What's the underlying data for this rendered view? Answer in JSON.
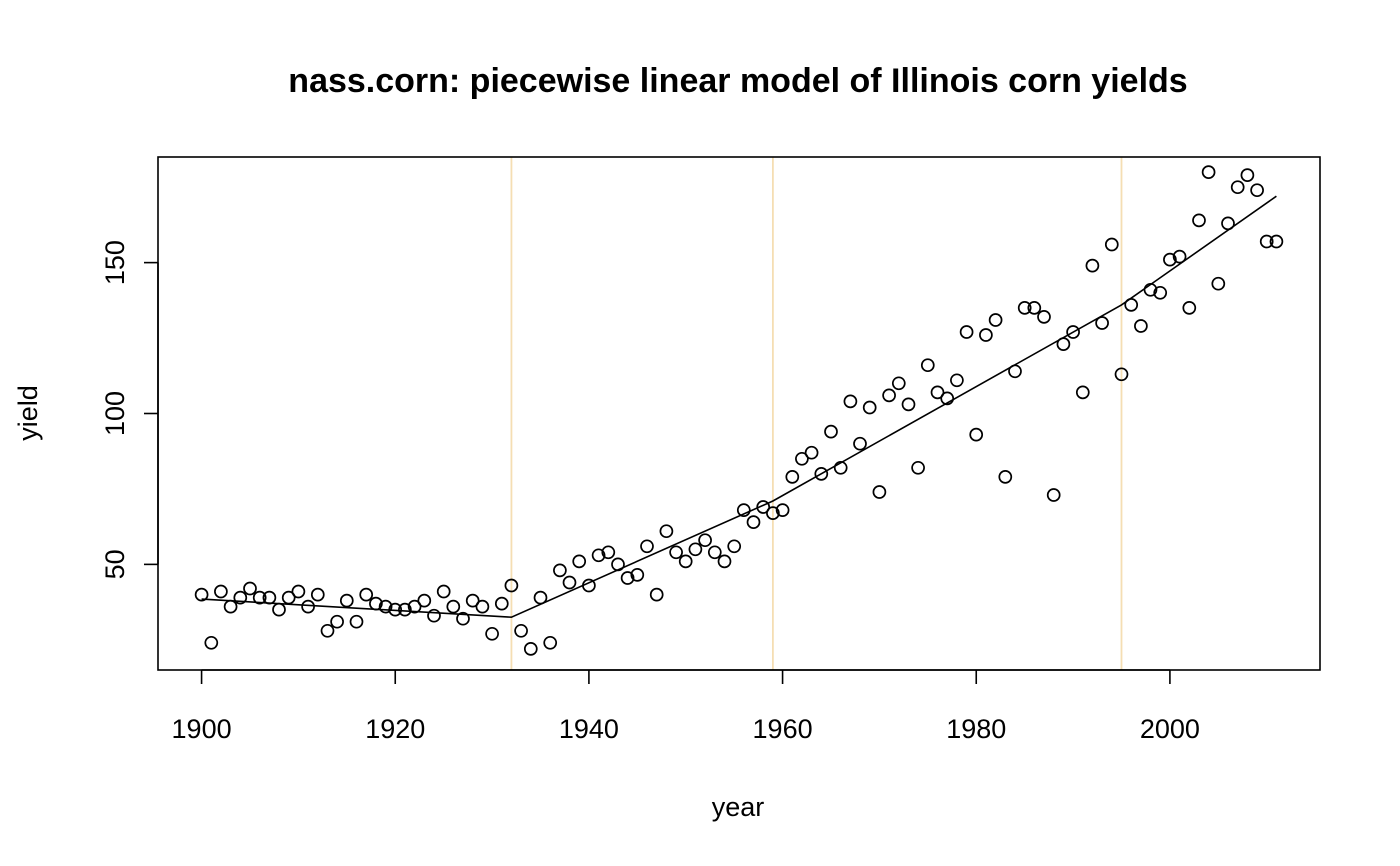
{
  "chart_data": {
    "type": "scatter",
    "title": "nass.corn: piecewise linear model of Illinois corn yields",
    "xlabel": "year",
    "ylabel": "yield",
    "xlim": [
      1895.5,
      2015.5
    ],
    "ylim": [
      15,
      185
    ],
    "xticks": [
      1900,
      1920,
      1940,
      1960,
      1980,
      2000
    ],
    "yticks": [
      50,
      100,
      150
    ],
    "grid": false,
    "breakpoints": [
      1932,
      1959,
      1995
    ],
    "breakpoint_color": "#f5deb3",
    "x": [
      1900,
      1901,
      1902,
      1903,
      1904,
      1905,
      1906,
      1907,
      1908,
      1909,
      1910,
      1911,
      1912,
      1913,
      1914,
      1915,
      1916,
      1917,
      1918,
      1919,
      1920,
      1921,
      1922,
      1923,
      1924,
      1925,
      1926,
      1927,
      1928,
      1929,
      1930,
      1931,
      1932,
      1933,
      1934,
      1935,
      1936,
      1937,
      1938,
      1939,
      1940,
      1941,
      1942,
      1943,
      1944,
      1945,
      1946,
      1947,
      1948,
      1949,
      1950,
      1951,
      1952,
      1953,
      1954,
      1955,
      1956,
      1957,
      1958,
      1959,
      1960,
      1961,
      1962,
      1963,
      1964,
      1965,
      1966,
      1967,
      1968,
      1969,
      1970,
      1971,
      1972,
      1973,
      1974,
      1975,
      1976,
      1977,
      1978,
      1979,
      1980,
      1981,
      1982,
      1983,
      1984,
      1985,
      1986,
      1987,
      1988,
      1989,
      1990,
      1991,
      1992,
      1993,
      1994,
      1995,
      1996,
      1997,
      1998,
      1999,
      2000,
      2001,
      2002,
      2003,
      2004,
      2005,
      2006,
      2007,
      2008,
      2009,
      2010,
      2011
    ],
    "y": [
      40,
      24,
      41,
      36,
      39,
      42,
      39,
      39,
      35,
      39,
      41,
      36,
      40,
      28,
      31,
      38,
      31,
      40,
      37,
      36,
      35,
      35,
      36,
      38,
      33,
      41,
      36,
      32,
      38,
      36,
      27,
      37,
      43,
      28,
      22,
      39,
      24,
      48,
      44,
      51,
      43,
      53,
      54,
      50,
      45.5,
      46.5,
      56,
      40,
      61,
      54,
      51,
      55,
      58,
      54,
      51,
      56,
      68,
      64,
      69,
      67,
      68,
      79,
      85,
      87,
      80,
      94,
      82,
      104,
      90,
      102,
      74,
      106,
      110,
      103,
      82,
      116,
      107,
      105,
      111,
      127,
      93,
      126,
      131,
      79,
      114,
      135,
      135,
      132,
      73,
      123,
      127,
      107,
      149,
      130,
      156,
      113,
      136,
      129,
      141,
      140,
      151,
      152,
      135,
      164,
      180,
      143,
      163,
      175,
      179,
      174,
      157,
      157
    ],
    "fit_line": {
      "x": [
        1900,
        1932,
        1959,
        1995,
        2011
      ],
      "y": [
        38.5,
        32.5,
        71,
        136,
        172
      ]
    }
  }
}
